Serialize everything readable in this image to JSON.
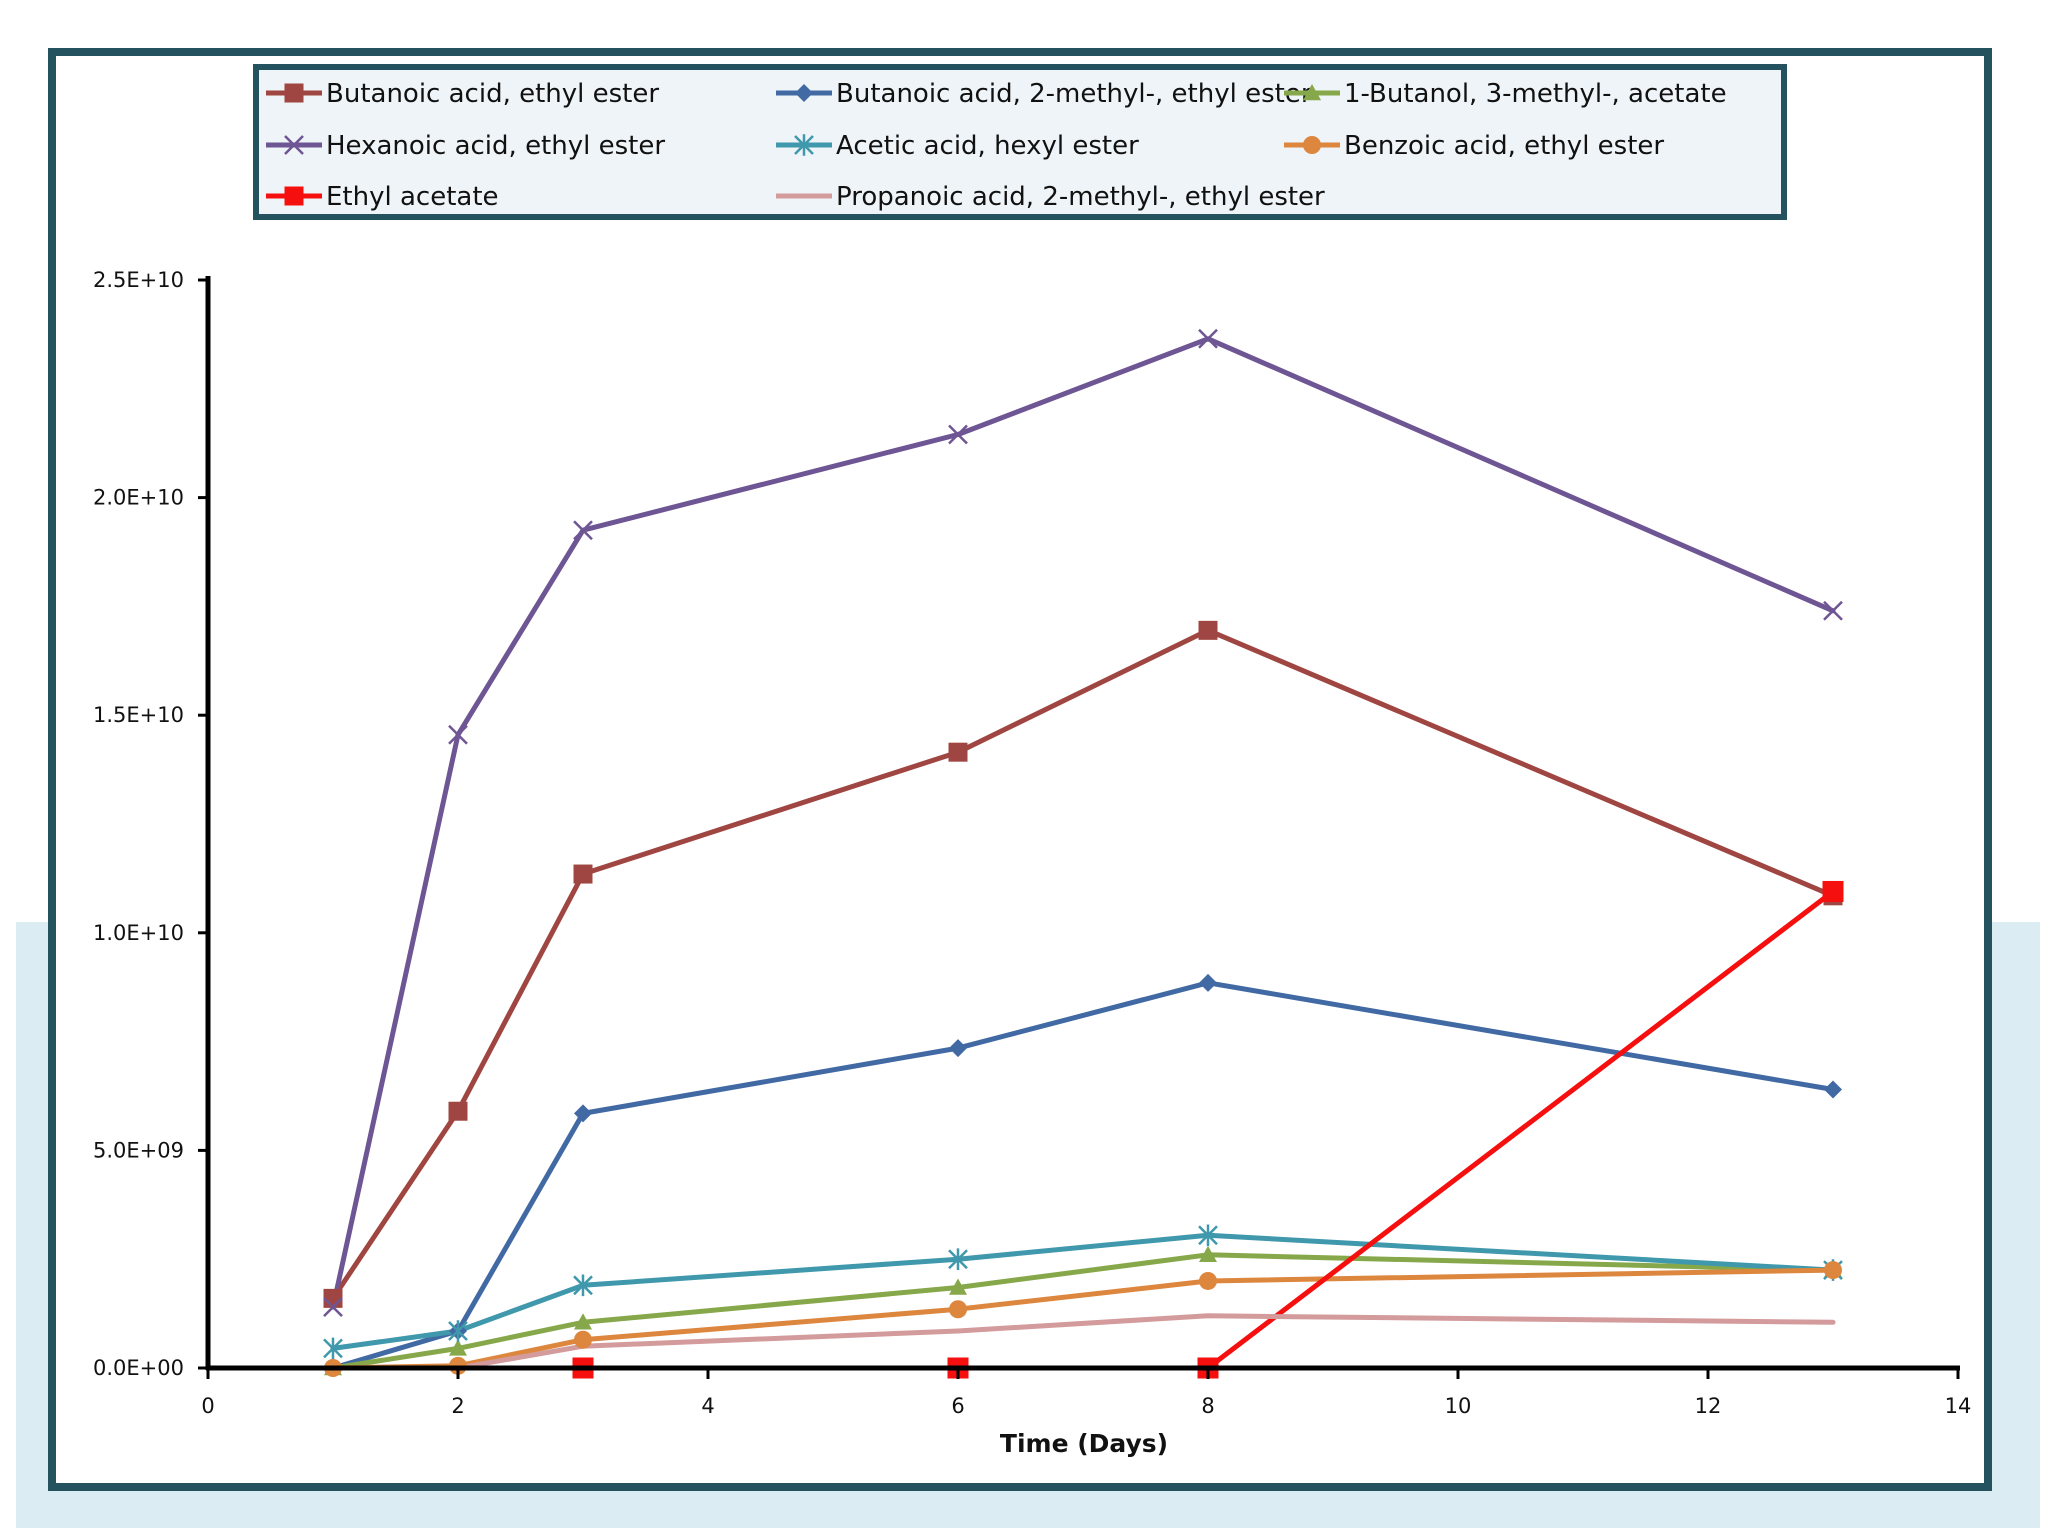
{
  "chart_data": {
    "type": "line",
    "title": "",
    "xlabel": "Time (Days)",
    "ylabel": "",
    "xlim": [
      0,
      14
    ],
    "ylim": [
      0,
      25000000000
    ],
    "xticks": [
      0,
      2,
      4,
      6,
      8,
      10,
      12,
      14
    ],
    "xtick_labels": [
      "0",
      "2",
      "4",
      "6",
      "8",
      "10",
      "12",
      "14"
    ],
    "yticks": [
      0,
      5000000000,
      10000000000,
      15000000000,
      20000000000,
      25000000000
    ],
    "ytick_labels": [
      "0.0E+00",
      "5.0E+09",
      "1.0E+10",
      "1.5E+10",
      "2.0E+10",
      "2.5E+10"
    ],
    "grid": false,
    "legend_position": "top",
    "series": [
      {
        "name": "Butanoic acid, ethyl ester",
        "color": "#a04642",
        "marker": "square",
        "x": [
          1,
          2,
          3,
          6,
          8,
          13
        ],
        "values": [
          1600000000,
          5900000000,
          11350000000,
          14150000000,
          16950000000,
          10850000000
        ]
      },
      {
        "name": "Butanoic acid, 2-methyl-, ethyl ester",
        "color": "#4169a3",
        "marker": "diamond",
        "x": [
          1,
          2,
          3,
          6,
          8,
          13
        ],
        "values": [
          0,
          850000000,
          5850000000,
          7350000000,
          8850000000,
          6400000000
        ]
      },
      {
        "name": "1-Butanol, 3-methyl-, acetate",
        "color": "#86a84a",
        "marker": "triangle",
        "x": [
          1,
          2,
          3,
          6,
          8,
          13
        ],
        "values": [
          0,
          450000000,
          1050000000,
          1850000000,
          2600000000,
          2250000000
        ]
      },
      {
        "name": "Hexanoic acid, ethyl ester",
        "color": "#6e5594",
        "marker": "x",
        "x": [
          1,
          2,
          3,
          6,
          8,
          13
        ],
        "values": [
          1400000000,
          14550000000,
          19250000000,
          21450000000,
          23650000000,
          17400000000
        ]
      },
      {
        "name": "Acetic acid, hexyl ester",
        "color": "#3f98ab",
        "marker": "star",
        "x": [
          1,
          2,
          3,
          6,
          8,
          13
        ],
        "values": [
          450000000,
          850000000,
          1900000000,
          2500000000,
          3050000000,
          2250000000
        ]
      },
      {
        "name": "Benzoic acid, ethyl ester",
        "color": "#dc863e",
        "marker": "circle",
        "x": [
          1,
          2,
          3,
          6,
          8,
          13
        ],
        "values": [
          0,
          50000000,
          650000000,
          1350000000,
          2000000000,
          2250000000
        ]
      },
      {
        "name": "Ethyl acetate",
        "color": "#f50f0f",
        "marker": "square",
        "x": [
          3,
          6,
          8,
          13
        ],
        "values": [
          0,
          0,
          0,
          10950000000
        ]
      },
      {
        "name": "Propanoic acid, 2-methyl-, ethyl ester",
        "color": "#d39b9b",
        "marker": "none",
        "x": [
          1,
          2,
          3,
          6,
          8,
          13
        ],
        "values": [
          0,
          0,
          500000000,
          850000000,
          1200000000,
          1050000000
        ]
      }
    ]
  }
}
